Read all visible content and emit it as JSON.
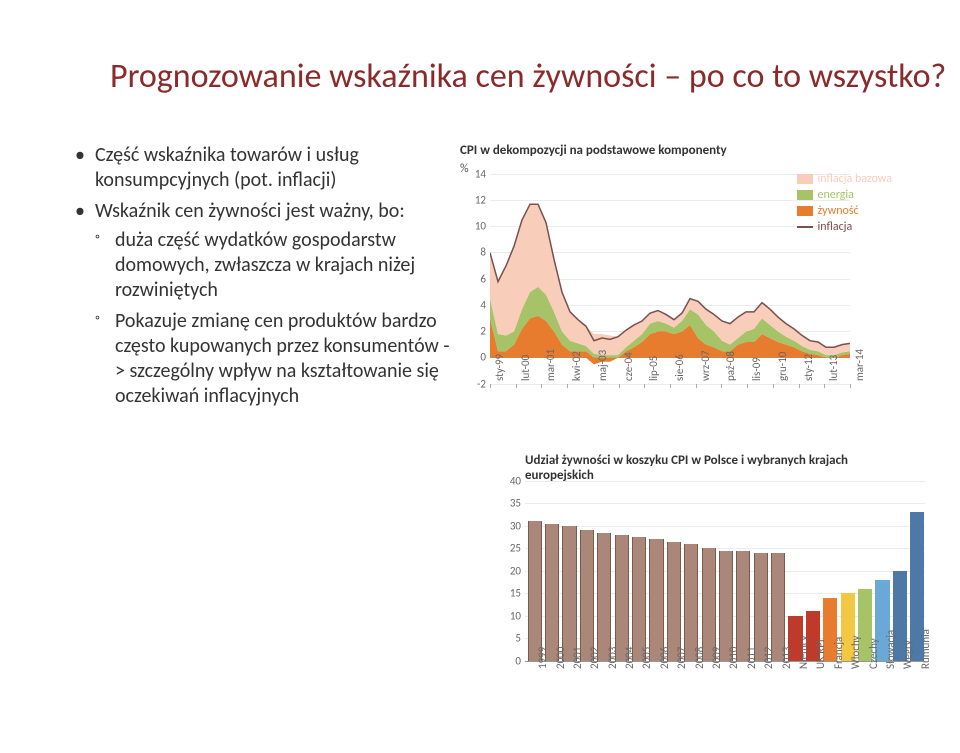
{
  "title": "Prognozowanie wskaźnika cen żywności – po co to wszystko?",
  "bullets": {
    "item1": "Część wskaźnika towarów i usług konsumpcyjnych (pot. inflacji)",
    "item2": "Wskaźnik cen żywności jest ważny, bo:",
    "sub1": "duża część wydatków gospodarstw domowych, zwłaszcza w krajach niżej rozwiniętych",
    "sub2": "Pokazuje zmianę cen produktów bardzo często kupowanych przez konsumentów -> szczególny wpływ na kształtowanie się oczekiwań inflacyjnych"
  },
  "chart1": {
    "title": "CPI w dekompozycji na podstawowe komponenty",
    "type": "stacked-area",
    "y_unit": "% ",
    "ymin": -2,
    "ymax": 14,
    "ystep": 2,
    "x_labels": [
      "sty-99",
      "lut-00",
      "mar-01",
      "kwi-02",
      "maj-03",
      "cze-04",
      "lip-05",
      "sie-06",
      "wrz-07",
      "paź-08",
      "lis-09",
      "gru-10",
      "sty-12",
      "lut-13",
      "mar-14"
    ],
    "legend": [
      {
        "label": "inflacja bazowa",
        "type": "sw",
        "color": "#f8cdb9"
      },
      {
        "label": "energia",
        "type": "sw",
        "color": "#a6c367"
      },
      {
        "label": "żywność",
        "type": "sw",
        "color": "#e77c2f"
      },
      {
        "label": "inflacja",
        "type": "ln",
        "color": "#7a4f4f"
      }
    ],
    "colors": {
      "core": "#f8cdb9",
      "energy": "#a6c367",
      "food": "#e77c2f",
      "line": "#7a4f4f"
    },
    "background": "#ffffff",
    "series_food": [
      3.0,
      0.5,
      0.5,
      1.0,
      2.2,
      3.0,
      3.2,
      2.8,
      2.0,
      1.0,
      0.5,
      0.5,
      0.5,
      -0.5,
      -0.3,
      -0.3,
      0.0,
      0.5,
      0.8,
      1.2,
      1.8,
      2.0,
      2.0,
      1.8,
      2.0,
      2.5,
      1.5,
      1.0,
      0.8,
      0.5,
      0.5,
      1.0,
      1.2,
      1.2,
      1.8,
      1.5,
      1.2,
      1.0,
      0.8,
      0.5,
      0.3,
      0.2,
      0.0,
      0.0,
      0.2,
      0.3
    ],
    "series_energy": [
      1.5,
      1.3,
      1.2,
      1.0,
      1.5,
      2.0,
      2.2,
      2.0,
      1.5,
      1.0,
      0.8,
      0.6,
      0.4,
      0.3,
      0.2,
      0.2,
      0.2,
      0.3,
      0.5,
      0.6,
      0.8,
      0.8,
      0.6,
      0.5,
      0.8,
      1.2,
      1.8,
      1.5,
      1.2,
      0.8,
      0.5,
      0.5,
      0.8,
      1.0,
      1.2,
      1.0,
      0.8,
      0.6,
      0.5,
      0.4,
      0.3,
      0.3,
      0.2,
      0.2,
      0.2,
      0.2
    ],
    "series_core": [
      3.5,
      4.0,
      5.3,
      6.5,
      6.8,
      6.7,
      6.3,
      5.5,
      4.0,
      3.0,
      2.2,
      1.8,
      1.5,
      1.5,
      1.6,
      1.5,
      1.4,
      1.3,
      1.2,
      1.0,
      0.8,
      0.8,
      0.7,
      0.6,
      0.6,
      0.8,
      1.0,
      1.2,
      1.3,
      1.5,
      1.6,
      1.6,
      1.5,
      1.3,
      1.2,
      1.2,
      1.1,
      1.0,
      0.9,
      0.8,
      0.7,
      0.7,
      0.6,
      0.6,
      0.6,
      0.6
    ]
  },
  "chart2": {
    "title": "Udział żywności w koszyku CPI w Polsce i wybranych krajach europejskich",
    "type": "bar",
    "ymin": 0,
    "ymax": 40,
    "ystep": 5,
    "bar_width": 0.7,
    "poland_color": "#aa8778",
    "poland_border": "#7a5a4a",
    "x_labels_years": [
      "1999",
      "2000",
      "2001",
      "2002",
      "2003",
      "2004",
      "2005",
      "2006",
      "2007",
      "2008",
      "2009",
      "2010",
      "2011",
      "2012",
      "2013"
    ],
    "poland_years_values": [
      31,
      30.5,
      30,
      29,
      28.5,
      28,
      27.5,
      27,
      26.5,
      26,
      25,
      24.5,
      24.5,
      24,
      24
    ],
    "countries": [
      {
        "label": "Niemcy",
        "value": 10,
        "color": "#c03a2b"
      },
      {
        "label": "UK RPI",
        "value": 11,
        "color": "#c03a2b"
      },
      {
        "label": "Francja",
        "value": 14,
        "color": "#e77c2f"
      },
      {
        "label": "Włochy",
        "value": 15,
        "color": "#f2c843"
      },
      {
        "label": "Czechy",
        "value": 16,
        "color": "#a6c367"
      },
      {
        "label": "Słowacja",
        "value": 18,
        "color": "#6aa8d8"
      },
      {
        "label": "Węgry",
        "value": 20,
        "color": "#4e79a7"
      },
      {
        "label": "Rumunia",
        "value": 33,
        "color": "#4e79a7"
      }
    ]
  }
}
